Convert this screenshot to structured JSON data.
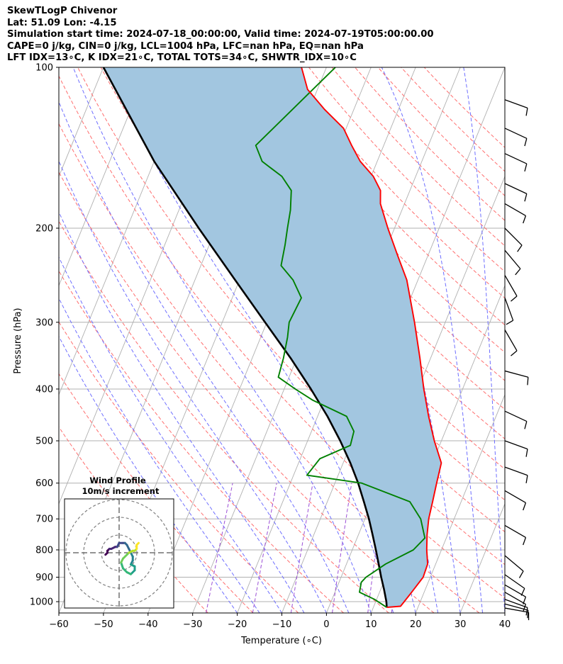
{
  "header": {
    "title": "SkewTLogP Chivenor",
    "location": "Lat: 51.09   Lon: -4.15",
    "times": "Simulation start time: 2024-07-18_00:00:00, Valid time: 2024-07-19T05:00:00.00",
    "indices1": "CAPE=0 j/kg, CIN=0 j/kg, LCL=1004 hPa, LFC=nan hPa, EQ=nan hPa",
    "indices2": "LFT IDX=13∘C, K IDX=21∘C, TOTAL TOTS=34∘C, SHWTR_IDX=10∘C"
  },
  "chart_data": {
    "type": "skewt",
    "xlabel": "Temperature (∘C)",
    "ylabel": "Pressure (hPa)",
    "xlim": [
      -60,
      40
    ],
    "ylim": [
      1050,
      100
    ],
    "x_ticks": [
      -60,
      -50,
      -40,
      -30,
      -20,
      -10,
      0,
      10,
      20,
      30,
      40
    ],
    "x_tick_labels": [
      "−60",
      "−50",
      "−40",
      "−30",
      "−20",
      "−10",
      "0",
      "10",
      "20",
      "30",
      "40"
    ],
    "y_ticks": [
      1000,
      900,
      800,
      700,
      600,
      500,
      400,
      300,
      200,
      100
    ],
    "grid": true,
    "colors": {
      "temperature": "#ff0000",
      "dewpoint": "#008000",
      "parcel": "#000000",
      "shading": "#a2c6e0",
      "dry_adiabat": "#ff6e6e",
      "moist_adiabat": "#6e6eff",
      "mixing_ratio": "#9b4fd6",
      "isotherm": "#b0b0b0"
    },
    "temperature": [
      {
        "p": 1025,
        "t": 13.0
      },
      {
        "p": 1020,
        "t": 16.0
      },
      {
        "p": 1000,
        "t": 16.4
      },
      {
        "p": 960,
        "t": 17.2
      },
      {
        "p": 900,
        "t": 18.4
      },
      {
        "p": 850,
        "t": 18.2
      },
      {
        "p": 800,
        "t": 16.7
      },
      {
        "p": 750,
        "t": 15.4
      },
      {
        "p": 700,
        "t": 14.3
      },
      {
        "p": 650,
        "t": 13.6
      },
      {
        "p": 600,
        "t": 12.8
      },
      {
        "p": 550,
        "t": 12.0
      },
      {
        "p": 500,
        "t": 8.4
      },
      {
        "p": 450,
        "t": 4.9
      },
      {
        "p": 400,
        "t": 1.3
      },
      {
        "p": 350,
        "t": -2.4
      },
      {
        "p": 300,
        "t": -6.9
      },
      {
        "p": 250,
        "t": -12.5
      },
      {
        "p": 225,
        "t": -16.8
      },
      {
        "p": 200,
        "t": -21.5
      },
      {
        "p": 180,
        "t": -25.4
      },
      {
        "p": 170,
        "t": -26.6
      },
      {
        "p": 160,
        "t": -29.5
      },
      {
        "p": 150,
        "t": -33.8
      },
      {
        "p": 140,
        "t": -37.2
      },
      {
        "p": 130,
        "t": -40.6
      },
      {
        "p": 120,
        "t": -46.5
      },
      {
        "p": 110,
        "t": -52.2
      },
      {
        "p": 100,
        "t": -55.6
      }
    ],
    "dewpoint": [
      {
        "p": 1025,
        "t": 13.0
      },
      {
        "p": 990,
        "t": 9.5
      },
      {
        "p": 960,
        "t": 5.5
      },
      {
        "p": 920,
        "t": 5.0
      },
      {
        "p": 900,
        "t": 5.6
      },
      {
        "p": 850,
        "t": 8.8
      },
      {
        "p": 800,
        "t": 13.7
      },
      {
        "p": 760,
        "t": 15.2
      },
      {
        "p": 700,
        "t": 12.5
      },
      {
        "p": 650,
        "t": 8.5
      },
      {
        "p": 600,
        "t": -4.0
      },
      {
        "p": 580,
        "t": -17.0
      },
      {
        "p": 540,
        "t": -15.6
      },
      {
        "p": 510,
        "t": -10.0
      },
      {
        "p": 480,
        "t": -10.5
      },
      {
        "p": 450,
        "t": -13.5
      },
      {
        "p": 420,
        "t": -22.5
      },
      {
        "p": 400,
        "t": -27.5
      },
      {
        "p": 380,
        "t": -32.4
      },
      {
        "p": 350,
        "t": -33.0
      },
      {
        "p": 320,
        "t": -34.0
      },
      {
        "p": 300,
        "t": -35.0
      },
      {
        "p": 270,
        "t": -34.5
      },
      {
        "p": 250,
        "t": -38.0
      },
      {
        "p": 235,
        "t": -42.0
      },
      {
        "p": 215,
        "t": -43.0
      },
      {
        "p": 200,
        "t": -44.0
      },
      {
        "p": 185,
        "t": -45.0
      },
      {
        "p": 170,
        "t": -46.6
      },
      {
        "p": 160,
        "t": -50.0
      },
      {
        "p": 150,
        "t": -55.8
      },
      {
        "p": 140,
        "t": -58.7
      },
      {
        "p": 100,
        "t": -48.0
      }
    ],
    "parcel": [
      {
        "p": 1025,
        "t": 13.0
      },
      {
        "p": 1000,
        "t": 12.4
      },
      {
        "p": 950,
        "t": 10.8
      },
      {
        "p": 900,
        "t": 9.0
      },
      {
        "p": 850,
        "t": 7.2
      },
      {
        "p": 800,
        "t": 5.3
      },
      {
        "p": 750,
        "t": 3.2
      },
      {
        "p": 700,
        "t": 0.9
      },
      {
        "p": 650,
        "t": -1.8
      },
      {
        "p": 600,
        "t": -4.8
      },
      {
        "p": 550,
        "t": -8.4
      },
      {
        "p": 500,
        "t": -12.7
      },
      {
        "p": 450,
        "t": -17.8
      },
      {
        "p": 400,
        "t": -24.0
      },
      {
        "p": 350,
        "t": -31.4
      },
      {
        "p": 300,
        "t": -40.4
      },
      {
        "p": 250,
        "t": -51.0
      },
      {
        "p": 200,
        "t": -63.9
      },
      {
        "p": 150,
        "t": -80.0
      },
      {
        "p": 100,
        "t": -100.0
      }
    ],
    "wind_barbs": [
      {
        "p": 1028,
        "speed": 10,
        "dir": 280
      },
      {
        "p": 1010,
        "speed": 10,
        "dir": 285
      },
      {
        "p": 990,
        "speed": 10,
        "dir": 290
      },
      {
        "p": 960,
        "speed": 10,
        "dir": 300
      },
      {
        "p": 930,
        "speed": 10,
        "dir": 300
      },
      {
        "p": 890,
        "speed": 10,
        "dir": 305
      },
      {
        "p": 820,
        "speed": 10,
        "dir": 310
      },
      {
        "p": 720,
        "speed": 10,
        "dir": 300
      },
      {
        "p": 620,
        "speed": 10,
        "dir": 300
      },
      {
        "p": 560,
        "speed": 10,
        "dir": 290
      },
      {
        "p": 500,
        "speed": 10,
        "dir": 290
      },
      {
        "p": 440,
        "speed": 10,
        "dir": 295
      },
      {
        "p": 370,
        "speed": 10,
        "dir": 285
      },
      {
        "p": 310,
        "speed": 10,
        "dir": 330
      },
      {
        "p": 270,
        "speed": 10,
        "dir": 340
      },
      {
        "p": 245,
        "speed": 10,
        "dir": 330
      },
      {
        "p": 220,
        "speed": 10,
        "dir": 320
      },
      {
        "p": 200,
        "speed": 10,
        "dir": 315
      },
      {
        "p": 180,
        "speed": 10,
        "dir": 300
      },
      {
        "p": 165,
        "speed": 10,
        "dir": 295
      },
      {
        "p": 145,
        "speed": 10,
        "dir": 295
      },
      {
        "p": 130,
        "speed": 10,
        "dir": 295
      },
      {
        "p": 115,
        "speed": 10,
        "dir": 290
      }
    ],
    "hodograph": {
      "title": "Wind Profile",
      "subtitle": "10m/s increment",
      "rings_ms": [
        10,
        20,
        30
      ],
      "u": [
        -7,
        -6,
        -6,
        -5,
        -4,
        -2,
        -1,
        0,
        2,
        3,
        4,
        5,
        6,
        7,
        7,
        6,
        8,
        8,
        6,
        4,
        2,
        1,
        2,
        4,
        5,
        7,
        8,
        9,
        9,
        9,
        10
      ],
      "v": [
        -1,
        0,
        1,
        2,
        2,
        3,
        3,
        5,
        5,
        5,
        4,
        2,
        0,
        -2,
        -4,
        -6,
        -7,
        -9,
        -11,
        -10,
        -8,
        -5,
        -3,
        -1,
        0,
        1,
        1,
        2,
        3,
        4,
        5
      ]
    }
  }
}
